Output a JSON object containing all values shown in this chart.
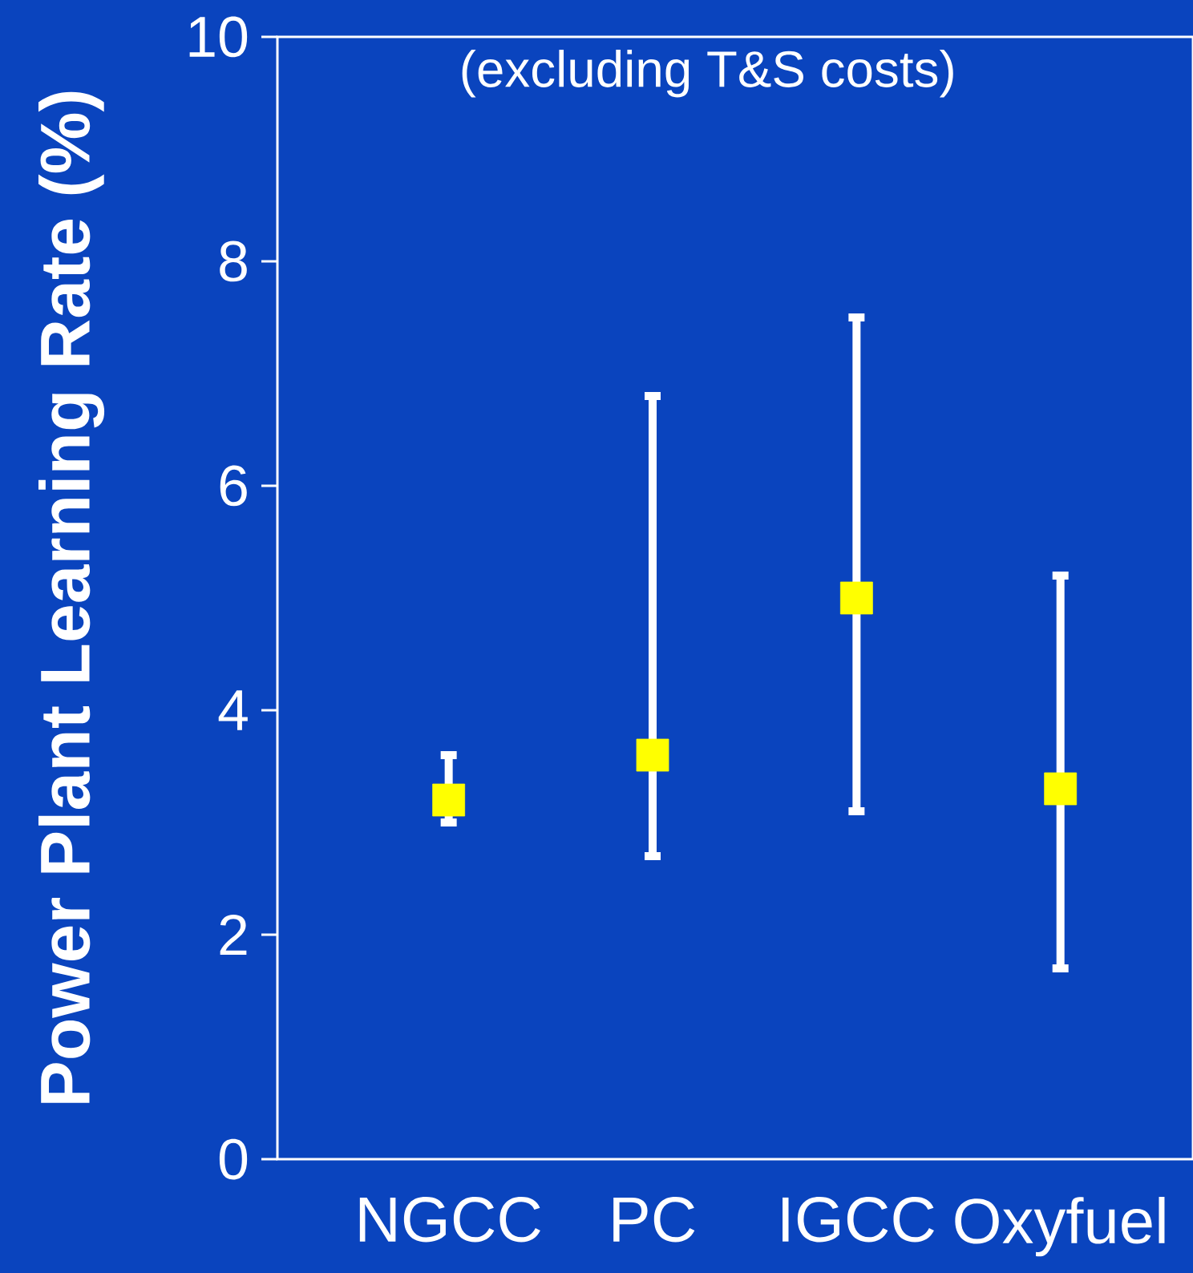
{
  "chart_data": {
    "type": "scatter",
    "title": "(excluding T&S costs)",
    "ylabel": "Power Plant Learning Rate (%)",
    "categories": [
      "NGCC",
      "PC",
      "IGCC",
      "Oxyfuel"
    ],
    "series": [
      {
        "color": "#ffff00",
        "values": [
          3.2,
          3.6,
          5.0,
          3.3
        ],
        "errors": [
          [
            3.0,
            3.6
          ],
          [
            2.7,
            6.8
          ],
          [
            3.1,
            7.5
          ],
          [
            1.7,
            5.2
          ]
        ]
      }
    ],
    "ylim": [
      0,
      10
    ],
    "yticks": [
      0,
      2,
      4,
      6,
      8,
      10
    ],
    "marker": "square"
  }
}
